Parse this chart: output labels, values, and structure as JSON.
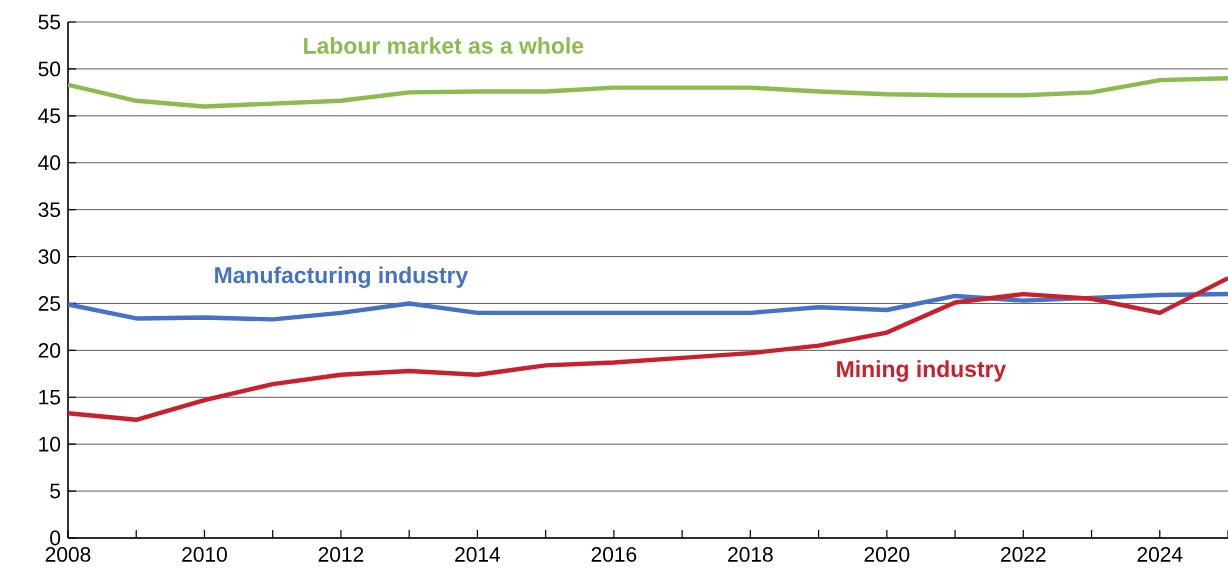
{
  "chart_data": {
    "type": "line",
    "x": [
      2008,
      2009,
      2010,
      2011,
      2012,
      2013,
      2014,
      2015,
      2016,
      2017,
      2018,
      2019,
      2020,
      2021,
      2022,
      2023,
      2024,
      2025
    ],
    "series": [
      {
        "name": "Labour market as a whole",
        "color": "#8cbb50",
        "values": [
          48.3,
          46.6,
          46.0,
          46.3,
          46.6,
          47.5,
          47.6,
          47.6,
          48.0,
          48.0,
          48.0,
          47.6,
          47.3,
          47.2,
          47.2,
          47.5,
          48.8,
          49.0
        ]
      },
      {
        "name": "Manufacturing industry",
        "color": "#4472c4",
        "values": [
          24.9,
          23.4,
          23.5,
          23.3,
          24.0,
          25.0,
          24.0,
          24.0,
          24.0,
          24.0,
          24.0,
          24.6,
          24.3,
          25.8,
          25.3,
          25.6,
          25.9,
          26.0
        ]
      },
      {
        "name": "Mining industry",
        "color": "#c8202c",
        "values": [
          13.3,
          12.6,
          14.7,
          16.4,
          17.4,
          17.8,
          17.4,
          18.4,
          18.7,
          19.2,
          19.7,
          20.5,
          21.9,
          25.1,
          26.0,
          25.5,
          24.0,
          27.7
        ]
      }
    ],
    "xlim": [
      2008,
      2025
    ],
    "xticks": [
      2008,
      {
        "value": 2009,
        "label": null
      },
      2010,
      {
        "value": 2011,
        "label": null
      },
      2012,
      {
        "value": 2013,
        "label": null
      },
      2014,
      {
        "value": 2015,
        "label": null
      },
      2016,
      {
        "value": 2017,
        "label": null
      },
      2018,
      {
        "value": 2019,
        "label": null
      },
      2020,
      {
        "value": 2021,
        "label": null
      },
      2022,
      {
        "value": 2023,
        "label": null
      },
      2024,
      {
        "value": 2025,
        "label": null
      }
    ],
    "ylim": [
      0,
      55
    ],
    "yticks": [
      0,
      5,
      10,
      15,
      20,
      25,
      30,
      35,
      40,
      45,
      50,
      55
    ],
    "grid": "y",
    "marker": "none",
    "line_style": "solid"
  }
}
